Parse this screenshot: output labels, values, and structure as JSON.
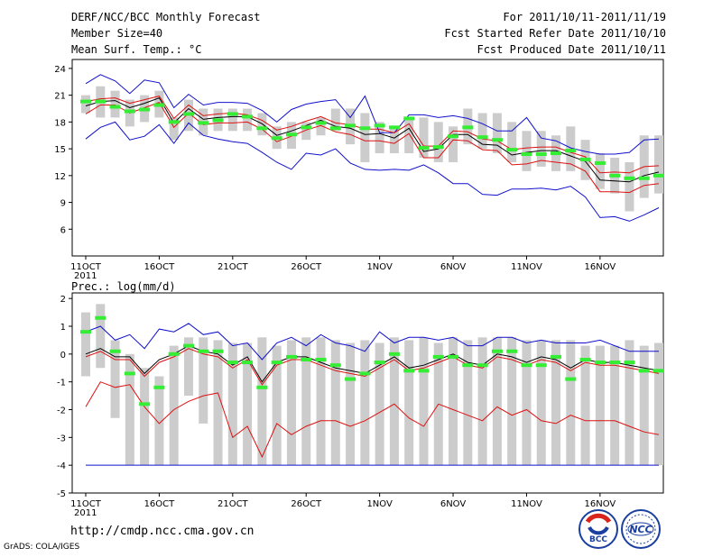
{
  "header": {
    "title": "DERF/NCC/BCC Monthly Forecast",
    "member_size": "Member Size=40",
    "variable": "Mean Surf. Temp.: °C",
    "forecast_range": "For 2011/10/11-2011/11/19",
    "started": "Fcst Started Refer Date 2011/10/10",
    "produced": "Fcst Produced Date 2011/10/11"
  },
  "footer": {
    "url": "http://cmdp.ncc.cma.gov.cn",
    "credit": "GrADS: COLA/IGES",
    "logo_bcc": "BCC",
    "logo_ncc": "NCC"
  },
  "colors": {
    "box": "#cccccc",
    "median": "#000000",
    "central_band": "#dd1111",
    "envelope": "#1010cc",
    "observed": "#33ee33",
    "floor_line": "#1010cc"
  },
  "chart_data": [
    {
      "type": "box-ensemble",
      "title": "Mean Surf. Temp.: °C",
      "xlabel": "",
      "ylabel": "Mean Surf. Temp. (°C)",
      "ylim": [
        3,
        25
      ],
      "yticks": [
        6,
        9,
        12,
        15,
        18,
        21,
        24
      ],
      "x_tick_days": [
        1,
        6,
        11,
        16,
        21,
        26,
        31,
        36
      ],
      "x_tick_labels": [
        "11OCT",
        "16OCT",
        "21OCT",
        "26OCT",
        "1NOV",
        "6NOV",
        "11NOV",
        "16NOV"
      ],
      "year_label": "2011",
      "days": [
        1,
        2,
        3,
        4,
        5,
        6,
        7,
        8,
        9,
        10,
        11,
        12,
        13,
        14,
        15,
        16,
        17,
        18,
        19,
        20,
        21,
        22,
        23,
        24,
        25,
        26,
        27,
        28,
        29,
        30,
        31,
        32,
        33,
        34,
        35,
        36,
        37,
        38,
        39,
        40
      ],
      "box_low": [
        19,
        18.5,
        18.5,
        17.5,
        18,
        18.5,
        16,
        17,
        16.5,
        17,
        17,
        17,
        16.5,
        15,
        15,
        16,
        16.5,
        17,
        15.5,
        13.5,
        14.5,
        14.5,
        14.5,
        14,
        13.5,
        13.5,
        15.5,
        15,
        14.5,
        13.5,
        12.5,
        13,
        12.5,
        12.5,
        11.5,
        10.5,
        10,
        8,
        9.5,
        10
      ],
      "box_high": [
        21,
        22,
        21.5,
        20.5,
        21,
        21.5,
        18.5,
        20.5,
        19.5,
        19.5,
        19.5,
        19.5,
        19,
        17.5,
        18,
        18,
        18.5,
        19.5,
        19.5,
        19,
        18,
        17.5,
        18.5,
        18.5,
        18,
        17.5,
        19.5,
        19,
        19,
        18,
        17,
        17,
        16.5,
        17.5,
        16,
        14.5,
        14,
        13.5,
        16.5,
        16.5
      ],
      "observed": [
        20.3,
        20.3,
        19.7,
        19.2,
        19.4,
        19.9,
        18.0,
        18.9,
        17.9,
        18.2,
        18.9,
        18.6,
        17.3,
        16.2,
        16.6,
        17.4,
        17.9,
        17.3,
        17.6,
        17.3,
        17.6,
        17.4,
        18.4,
        15.1,
        15.2,
        16.4,
        17.4,
        16.3,
        16.0,
        14.9,
        14.4,
        14.4,
        14.5,
        14.8,
        13.8,
        13.4,
        12.0,
        11.7,
        11.7,
        12.0
      ],
      "median": [
        19.8,
        20.3,
        20.4,
        19.6,
        20.1,
        20.7,
        17.9,
        19.5,
        18.3,
        18.5,
        18.6,
        18.6,
        17.8,
        16.5,
        17.0,
        17.6,
        18.2,
        17.5,
        17.3,
        16.6,
        16.7,
        16.2,
        17.3,
        14.7,
        15.0,
        16.6,
        16.6,
        15.5,
        15.4,
        14.3,
        14.6,
        14.8,
        14.8,
        14.2,
        13.6,
        11.5,
        11.4,
        11.3,
        12.0,
        12.4
      ],
      "red_high": [
        20.3,
        20.6,
        20.7,
        20.1,
        20.5,
        20.9,
        18.4,
        19.9,
        18.7,
        18.9,
        19.0,
        18.8,
        18.2,
        17.1,
        17.5,
        18.1,
        18.6,
        17.9,
        17.7,
        17.2,
        17.2,
        16.8,
        17.8,
        15.3,
        15.3,
        17.0,
        16.9,
        16.1,
        15.9,
        14.9,
        15.1,
        15.2,
        15.2,
        14.6,
        14.1,
        12.3,
        12.4,
        12.3,
        13.0,
        13.1
      ],
      "red_low": [
        18.9,
        19.9,
        19.9,
        19.0,
        19.6,
        20.2,
        17.4,
        19.0,
        17.7,
        17.9,
        17.9,
        18.0,
        17.2,
        15.8,
        16.4,
        17.1,
        17.6,
        16.9,
        16.6,
        15.9,
        15.9,
        15.6,
        16.7,
        14.0,
        14.0,
        16.0,
        15.9,
        14.9,
        14.8,
        13.2,
        13.3,
        13.7,
        13.5,
        13.3,
        12.5,
        10.2,
        10.2,
        10.1,
        10.9,
        11.1
      ],
      "blue_high": [
        22.3,
        23.3,
        22.6,
        21.2,
        22.7,
        22.4,
        19.6,
        21.1,
        19.9,
        20.2,
        20.2,
        20.1,
        19.3,
        18.0,
        19.4,
        20.0,
        20.3,
        20.5,
        18.5,
        20.9,
        16.8,
        16.8,
        18.8,
        18.8,
        18.5,
        18.7,
        18.4,
        17.8,
        17.0,
        17.0,
        18.5,
        16.2,
        15.9,
        15.1,
        14.7,
        14.4,
        14.4,
        14.6,
        16.0,
        16.1
      ],
      "blue_low": [
        16.1,
        17.4,
        18.0,
        16.0,
        16.4,
        17.7,
        15.6,
        17.9,
        16.5,
        16.1,
        15.8,
        15.6,
        14.6,
        13.5,
        12.7,
        14.5,
        14.3,
        15.0,
        13.4,
        12.7,
        12.6,
        12.7,
        12.6,
        13.2,
        12.3,
        11.1,
        11.1,
        9.9,
        9.8,
        10.5,
        10.5,
        10.6,
        10.4,
        10.8,
        9.6,
        7.3,
        7.4,
        6.9,
        7.6,
        8.4
      ]
    },
    {
      "type": "box-ensemble",
      "title": "Prec.: log(mm/d)",
      "xlabel": "",
      "ylabel": "log(mm/d)",
      "ylim": [
        -5,
        2.2
      ],
      "yticks": [
        -5,
        -4,
        -3,
        -2,
        -1,
        0,
        1,
        2
      ],
      "x_tick_days": [
        1,
        6,
        11,
        16,
        21,
        26,
        31,
        36
      ],
      "x_tick_labels": [
        "11OCT",
        "16OCT",
        "21OCT",
        "26OCT",
        "1NOV",
        "6NOV",
        "11NOV",
        "16NOV"
      ],
      "year_label": "2011",
      "floor_value": -4,
      "days": [
        1,
        2,
        3,
        4,
        5,
        6,
        7,
        8,
        9,
        10,
        11,
        12,
        13,
        14,
        15,
        16,
        17,
        18,
        19,
        20,
        21,
        22,
        23,
        24,
        25,
        26,
        27,
        28,
        29,
        30,
        31,
        32,
        33,
        34,
        35,
        36,
        37,
        38,
        39,
        40
      ],
      "box_low": [
        -0.8,
        -0.5,
        -2.3,
        -4,
        -4,
        -4,
        -4,
        -1.5,
        -2.5,
        -4,
        -4,
        -4,
        -4,
        -4,
        -4,
        -4,
        -4,
        -4,
        -4,
        -4,
        -4,
        -4,
        -4,
        -4,
        -4,
        -4,
        -4,
        -4,
        -4,
        -4,
        -4,
        -4,
        -4,
        -4,
        -4,
        -4,
        -4,
        -4,
        -4,
        -4
      ],
      "box_high": [
        1.5,
        1.8,
        0.5,
        0.0,
        -0.5,
        -0.8,
        0.3,
        0.6,
        0.6,
        0.5,
        0.4,
        0.4,
        0.6,
        0.3,
        0.5,
        0.6,
        0.6,
        0.5,
        0.4,
        0.5,
        0.4,
        0.6,
        0.5,
        0.6,
        0.4,
        0.6,
        0.5,
        0.6,
        0.6,
        0.6,
        0.5,
        0.5,
        0.5,
        0.5,
        0.3,
        0.3,
        0.3,
        0.5,
        0.3,
        0.4
      ],
      "observed": [
        0.8,
        1.3,
        0.1,
        -0.7,
        -1.8,
        -1.2,
        0.0,
        0.3,
        0.1,
        0.1,
        -0.3,
        -0.3,
        -1.2,
        -0.3,
        -0.1,
        -0.2,
        -0.2,
        -0.4,
        -0.9,
        -0.7,
        -0.3,
        0.0,
        -0.6,
        -0.6,
        -0.1,
        -0.1,
        -0.4,
        -0.4,
        0.1,
        0.1,
        -0.4,
        -0.4,
        -0.1,
        -0.9,
        -0.2,
        -0.3,
        -0.3,
        -0.3,
        -0.6,
        -0.6
      ],
      "median": [
        0.0,
        0.2,
        -0.1,
        -0.1,
        -0.7,
        -0.2,
        0.0,
        0.3,
        0.1,
        0.0,
        -0.4,
        -0.1,
        -1.0,
        -0.3,
        -0.1,
        -0.1,
        -0.3,
        -0.5,
        -0.6,
        -0.7,
        -0.4,
        -0.1,
        -0.5,
        -0.4,
        -0.2,
        0.0,
        -0.3,
        -0.4,
        0.0,
        -0.1,
        -0.3,
        -0.1,
        -0.2,
        -0.5,
        -0.2,
        -0.3,
        -0.3,
        -0.4,
        -0.5,
        -0.6
      ],
      "red_high": [
        -0.1,
        0.1,
        -0.2,
        -0.2,
        -0.8,
        -0.3,
        -0.1,
        0.2,
        0.0,
        -0.1,
        -0.5,
        -0.2,
        -1.1,
        -0.4,
        -0.2,
        -0.2,
        -0.4,
        -0.6,
        -0.7,
        -0.8,
        -0.5,
        -0.2,
        -0.6,
        -0.5,
        -0.3,
        -0.1,
        -0.4,
        -0.5,
        -0.1,
        -0.2,
        -0.4,
        -0.2,
        -0.3,
        -0.6,
        -0.3,
        -0.4,
        -0.4,
        -0.5,
        -0.6,
        -0.7
      ],
      "red_low": [
        -1.9,
        -1.0,
        -1.2,
        -1.1,
        -1.9,
        -2.5,
        -2.0,
        -1.7,
        -1.5,
        -1.4,
        -3.0,
        -2.6,
        -3.7,
        -2.5,
        -2.9,
        -2.6,
        -2.4,
        -2.4,
        -2.6,
        -2.4,
        -2.1,
        -1.8,
        -2.3,
        -2.6,
        -1.8,
        -2.0,
        -2.2,
        -2.4,
        -1.9,
        -2.2,
        -2.0,
        -2.4,
        -2.5,
        -2.2,
        -2.4,
        -2.4,
        -2.4,
        -2.6,
        -2.8,
        -2.9
      ],
      "blue_high": [
        0.8,
        1.0,
        0.5,
        0.7,
        0.2,
        0.9,
        0.8,
        1.1,
        0.7,
        0.8,
        0.3,
        0.4,
        -0.2,
        0.4,
        0.6,
        0.3,
        0.7,
        0.4,
        0.3,
        0.1,
        0.8,
        0.4,
        0.6,
        0.6,
        0.5,
        0.6,
        0.3,
        0.3,
        0.6,
        0.6,
        0.4,
        0.5,
        0.4,
        0.4,
        0.4,
        0.5,
        0.3,
        0.1,
        0.1,
        0.1
      ],
      "blue_low": [
        -4,
        -4,
        -4,
        -4,
        -4,
        -4,
        -4,
        -4,
        -4,
        -4,
        -4,
        -4,
        -4,
        -4,
        -4,
        -4,
        -4,
        -4,
        -4,
        -4,
        -4,
        -4,
        -4,
        -4,
        -4,
        -4,
        -4,
        -4,
        -4,
        -4,
        -4,
        -4,
        -4,
        -4,
        -4,
        -4,
        -4,
        -4,
        -4,
        -4
      ]
    }
  ]
}
